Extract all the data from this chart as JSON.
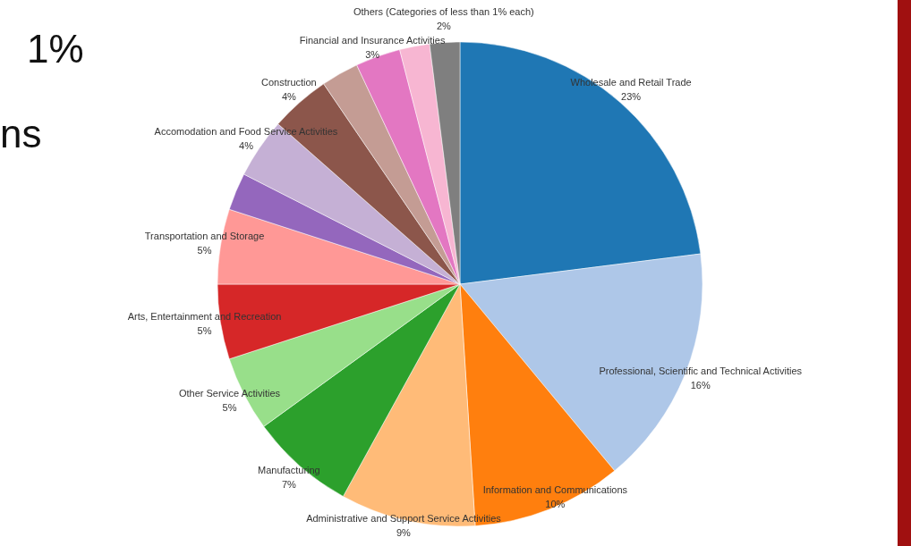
{
  "chart_data": {
    "type": "pie",
    "categories": [
      "Wholesale and Retail Trade",
      "Professional, Scientific and Technical Activities",
      "Information and Communications",
      "Administrative and Support Service Activities",
      "Manufacturing",
      "Other Service Activities",
      "Arts, Entertainment and Recreation",
      "Transportation and Storage",
      null,
      "Accomodation and Food Service Activities",
      "Construction",
      null,
      "Financial and Insurance Activities",
      null,
      "Others (Categories of less than 1% each)"
    ],
    "values": [
      23,
      16,
      10,
      9,
      7,
      5,
      5,
      5,
      2.5,
      4,
      4,
      2.5,
      3,
      2,
      2
    ],
    "value_labels": [
      "23%",
      "16%",
      "10%",
      "9%",
      "7%",
      "5%",
      "5%",
      "5%",
      null,
      "4%",
      "4%",
      null,
      "3%",
      null,
      "2%"
    ],
    "colors": [
      "#1f77b4",
      "#aec7e8",
      "#ff7f0e",
      "#ffbb78",
      "#2ca02c",
      "#98df8a",
      "#d62728",
      "#ff9896",
      "#9467bd",
      "#c5b0d5",
      "#8c564b",
      "#c49c94",
      "#e377c2",
      "#f7b6d2",
      "#7f7f7f"
    ],
    "annotations": [
      "1%",
      "ns"
    ],
    "legend": false
  }
}
